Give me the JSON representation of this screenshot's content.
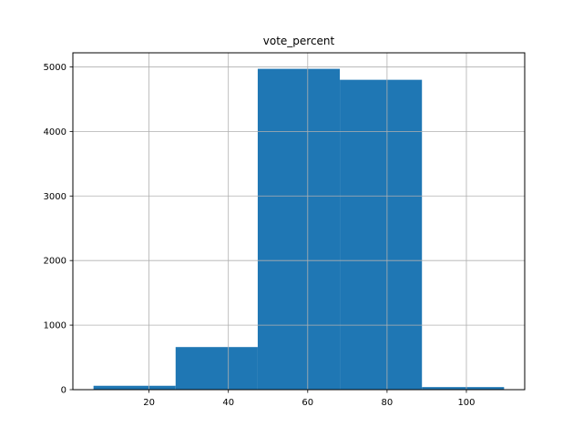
{
  "chart_data": {
    "type": "bar",
    "title": "vote_percent",
    "xlabel": "",
    "ylabel": "",
    "bins": [
      {
        "x0": 6,
        "x1": 26.7,
        "value": 60
      },
      {
        "x0": 26.7,
        "x1": 47.4,
        "value": 660
      },
      {
        "x0": 47.4,
        "x1": 68.1,
        "value": 4970
      },
      {
        "x0": 68.1,
        "x1": 88.8,
        "value": 4800
      },
      {
        "x0": 88.8,
        "x1": 109.5,
        "value": 40
      }
    ],
    "xlim": [
      0.8,
      114.7
    ],
    "ylim": [
      0,
      5218
    ],
    "xticks": [
      20,
      40,
      60,
      80,
      100
    ],
    "yticks": [
      0,
      1000,
      2000,
      3000,
      4000,
      5000
    ],
    "grid": true,
    "bar_color": "#1f77b4"
  }
}
